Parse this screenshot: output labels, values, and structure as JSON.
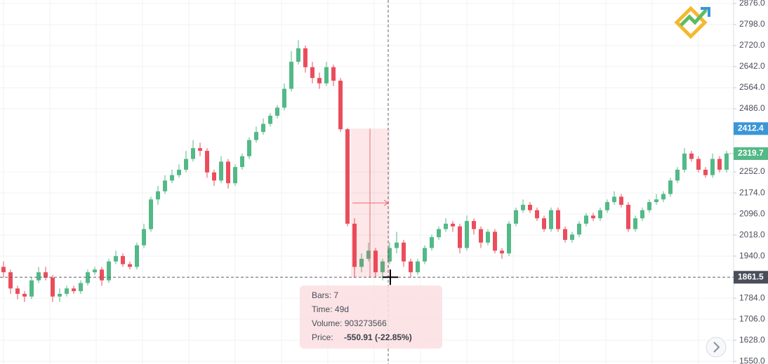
{
  "chart_data": {
    "type": "candlestick",
    "ylim": [
      1540,
      2889
    ],
    "yticks": [
      {
        "value": 1550,
        "label": "1550.0"
      },
      {
        "value": 1628,
        "label": "1628.0"
      },
      {
        "value": 1706,
        "label": "1706.0"
      },
      {
        "value": 1784,
        "label": "1784.0"
      },
      {
        "value": 1940,
        "label": "1940.0"
      },
      {
        "value": 2018,
        "label": "2018.0"
      },
      {
        "value": 2096,
        "label": "2096.0"
      },
      {
        "value": 2174,
        "label": "2174.0"
      },
      {
        "value": 2252,
        "label": "2252.0"
      },
      {
        "value": 2486,
        "label": "2486.0"
      },
      {
        "value": 2564,
        "label": "2564.0"
      },
      {
        "value": 2642,
        "label": "2642.0"
      },
      {
        "value": 2720,
        "label": "2720.0"
      },
      {
        "value": 2798,
        "label": "2798.0"
      },
      {
        "value": 2876,
        "label": "2876.0"
      }
    ],
    "grid": true,
    "up_color": "#53b987",
    "down_color": "#eb4d5c",
    "ohlc": [
      [
        1900,
        1920,
        1860,
        1880
      ],
      [
        1880,
        1890,
        1800,
        1820
      ],
      [
        1820,
        1830,
        1780,
        1800
      ],
      [
        1800,
        1810,
        1770,
        1790
      ],
      [
        1790,
        1860,
        1780,
        1850
      ],
      [
        1850,
        1900,
        1840,
        1880
      ],
      [
        1880,
        1900,
        1850,
        1860
      ],
      [
        1860,
        1870,
        1770,
        1790
      ],
      [
        1790,
        1820,
        1770,
        1800
      ],
      [
        1800,
        1830,
        1790,
        1820
      ],
      [
        1820,
        1830,
        1800,
        1810
      ],
      [
        1810,
        1850,
        1800,
        1840
      ],
      [
        1840,
        1890,
        1830,
        1880
      ],
      [
        1880,
        1900,
        1870,
        1890
      ],
      [
        1890,
        1900,
        1830,
        1850
      ],
      [
        1850,
        1930,
        1840,
        1920
      ],
      [
        1920,
        1960,
        1910,
        1940
      ],
      [
        1940,
        1950,
        1900,
        1910
      ],
      [
        1910,
        1920,
        1890,
        1900
      ],
      [
        1900,
        1990,
        1890,
        1980
      ],
      [
        1980,
        2060,
        1970,
        2040
      ],
      [
        2040,
        2160,
        2030,
        2150
      ],
      [
        2150,
        2200,
        2130,
        2180
      ],
      [
        2180,
        2240,
        2170,
        2220
      ],
      [
        2220,
        2260,
        2210,
        2240
      ],
      [
        2240,
        2280,
        2230,
        2260
      ],
      [
        2260,
        2330,
        2250,
        2300
      ],
      [
        2300,
        2370,
        2290,
        2340
      ],
      [
        2340,
        2360,
        2310,
        2330
      ],
      [
        2330,
        2340,
        2230,
        2250
      ],
      [
        2250,
        2260,
        2200,
        2220
      ],
      [
        2220,
        2310,
        2210,
        2290
      ],
      [
        2290,
        2300,
        2190,
        2210
      ],
      [
        2210,
        2280,
        2200,
        2270
      ],
      [
        2270,
        2320,
        2260,
        2310
      ],
      [
        2310,
        2380,
        2300,
        2370
      ],
      [
        2370,
        2420,
        2360,
        2400
      ],
      [
        2400,
        2450,
        2390,
        2430
      ],
      [
        2430,
        2470,
        2420,
        2460
      ],
      [
        2460,
        2500,
        2450,
        2490
      ],
      [
        2490,
        2580,
        2480,
        2560
      ],
      [
        2560,
        2700,
        2550,
        2660
      ],
      [
        2660,
        2740,
        2650,
        2710
      ],
      [
        2710,
        2720,
        2620,
        2640
      ],
      [
        2640,
        2660,
        2580,
        2600
      ],
      [
        2600,
        2620,
        2560,
        2580
      ],
      [
        2580,
        2660,
        2570,
        2640
      ],
      [
        2640,
        2650,
        2570,
        2590
      ],
      [
        2590,
        2600,
        2400,
        2410
      ],
      [
        2410,
        2415,
        2050,
        2060
      ],
      [
        2060,
        2080,
        1860,
        1900
      ],
      [
        1900,
        1950,
        1880,
        1930
      ],
      [
        1930,
        1990,
        1920,
        1960
      ],
      [
        1960,
        1970,
        1860,
        1880
      ],
      [
        1880,
        1930,
        1850,
        1920
      ],
      [
        1920,
        1990,
        1910,
        1970
      ],
      [
        1970,
        2030,
        1950,
        1990
      ],
      [
        1990,
        2000,
        1900,
        1920
      ],
      [
        1920,
        1930,
        1860,
        1880
      ],
      [
        1880,
        1930,
        1870,
        1920
      ],
      [
        1920,
        1980,
        1910,
        1970
      ],
      [
        1970,
        2020,
        1960,
        2010
      ],
      [
        2010,
        2050,
        2000,
        2040
      ],
      [
        2040,
        2080,
        2030,
        2060
      ],
      [
        2060,
        2070,
        2030,
        2050
      ],
      [
        2050,
        2060,
        1950,
        1970
      ],
      [
        1970,
        2090,
        1960,
        2070
      ],
      [
        2070,
        2080,
        2020,
        2040
      ],
      [
        2040,
        2050,
        1970,
        1990
      ],
      [
        1990,
        2040,
        1980,
        2030
      ],
      [
        2030,
        2040,
        1950,
        1960
      ],
      [
        1960,
        1970,
        1930,
        1950
      ],
      [
        1950,
        2070,
        1940,
        2060
      ],
      [
        2060,
        2120,
        2050,
        2110
      ],
      [
        2110,
        2150,
        2100,
        2130
      ],
      [
        2130,
        2140,
        2100,
        2110
      ],
      [
        2110,
        2120,
        2070,
        2080
      ],
      [
        2080,
        2090,
        2030,
        2040
      ],
      [
        2040,
        2120,
        2030,
        2110
      ],
      [
        2110,
        2120,
        2030,
        2040
      ],
      [
        2040,
        2050,
        1990,
        2000
      ],
      [
        2000,
        2030,
        1990,
        2020
      ],
      [
        2020,
        2070,
        2010,
        2060
      ],
      [
        2060,
        2100,
        2050,
        2090
      ],
      [
        2090,
        2100,
        2070,
        2080
      ],
      [
        2080,
        2120,
        2070,
        2110
      ],
      [
        2110,
        2150,
        2100,
        2140
      ],
      [
        2140,
        2180,
        2130,
        2160
      ],
      [
        2160,
        2170,
        2120,
        2130
      ],
      [
        2130,
        2140,
        2030,
        2040
      ],
      [
        2040,
        2090,
        2030,
        2080
      ],
      [
        2080,
        2120,
        2070,
        2110
      ],
      [
        2110,
        2150,
        2100,
        2140
      ],
      [
        2140,
        2170,
        2130,
        2150
      ],
      [
        2150,
        2180,
        2140,
        2170
      ],
      [
        2170,
        2230,
        2160,
        2220
      ],
      [
        2220,
        2270,
        2210,
        2260
      ],
      [
        2260,
        2340,
        2250,
        2320
      ],
      [
        2320,
        2330,
        2290,
        2300
      ],
      [
        2300,
        2310,
        2250,
        2260
      ],
      [
        2260,
        2270,
        2230,
        2240
      ],
      [
        2240,
        2320,
        2230,
        2300
      ],
      [
        2300,
        2310,
        2250,
        2260
      ],
      [
        2260,
        2330,
        2250,
        2319.7
      ]
    ],
    "price_labels": {
      "measure_top": {
        "value": 2412.4,
        "label": "2412.4",
        "color": "#3a96d8"
      },
      "last_price": {
        "value": 2319.7,
        "label": "2319.7",
        "color": "#53b987"
      },
      "crosshair": {
        "value": 1861.5,
        "label": "1861.5",
        "color": "#4a4e5a"
      }
    },
    "measure": {
      "bars": "Bars: 7",
      "time": "Time: 49d",
      "volume": "Volume: 903273566",
      "price_label": "Price:",
      "price": "-550.91 (-22.85%)"
    }
  }
}
